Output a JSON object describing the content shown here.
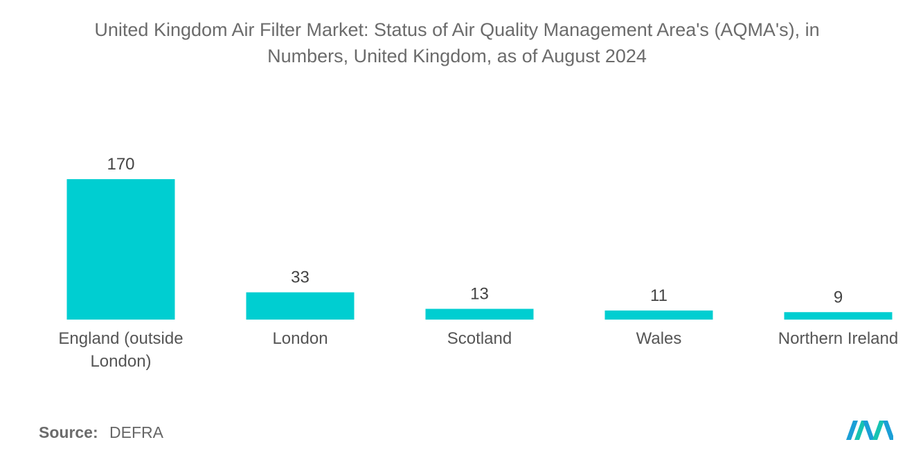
{
  "chart_data": {
    "type": "bar",
    "title_line1": "United Kingdom Air Filter Market: Status of Air Quality Management Area's (AQMA's), in",
    "title_line2": "Numbers, United Kingdom, as of August 2024",
    "categories": [
      [
        "England (outside",
        "London)"
      ],
      [
        "London"
      ],
      [
        "Scotland"
      ],
      [
        "Wales"
      ],
      [
        "Northern Ireland"
      ]
    ],
    "values": [
      170,
      33,
      13,
      11,
      9
    ],
    "data_labels": [
      "170",
      "33",
      "13",
      "11",
      "9"
    ],
    "xlabel": "",
    "ylabel": "",
    "ylim": [
      0,
      170
    ],
    "grid": false,
    "bar_color": "#00CED1"
  },
  "source": {
    "label": "Source:",
    "value": "DEFRA"
  },
  "logo": {
    "icon": "mordor-intelligence-logo-icon",
    "colors": [
      "#1b9fd6",
      "#17c3b2"
    ]
  }
}
